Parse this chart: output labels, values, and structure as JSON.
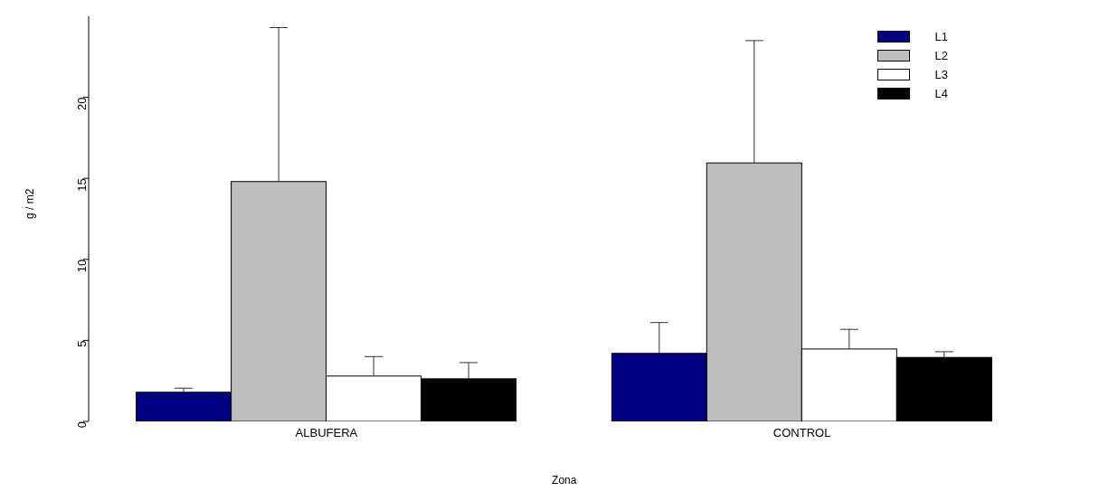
{
  "chart_data": {
    "type": "bar",
    "xlabel": "Zona",
    "ylabel": "g / m2",
    "categories": [
      "ALBUFERA",
      "CONTROL"
    ],
    "series": [
      {
        "name": "L1",
        "color": "#000080",
        "values": [
          1.8,
          4.2
        ],
        "errors": [
          [
            1.8,
            2.05
          ],
          [
            4.2,
            6.1
          ]
        ]
      },
      {
        "name": "L2",
        "color": "#bebebe",
        "values": [
          14.8,
          15.95
        ],
        "errors": [
          [
            14.8,
            24.3
          ],
          [
            15.95,
            23.5
          ]
        ]
      },
      {
        "name": "L3",
        "color": "#ffffff",
        "values": [
          2.8,
          4.47
        ],
        "errors": [
          [
            2.8,
            4.0
          ],
          [
            4.47,
            5.68
          ]
        ]
      },
      {
        "name": "L4",
        "color": "#000000",
        "values": [
          2.63,
          3.95
        ],
        "errors": [
          [
            2.63,
            3.63
          ],
          [
            3.95,
            4.3
          ]
        ]
      }
    ],
    "ylim": [
      0,
      25
    ],
    "yticks": [
      0,
      5,
      10,
      15,
      20
    ],
    "grid": false,
    "legend": "top right"
  }
}
